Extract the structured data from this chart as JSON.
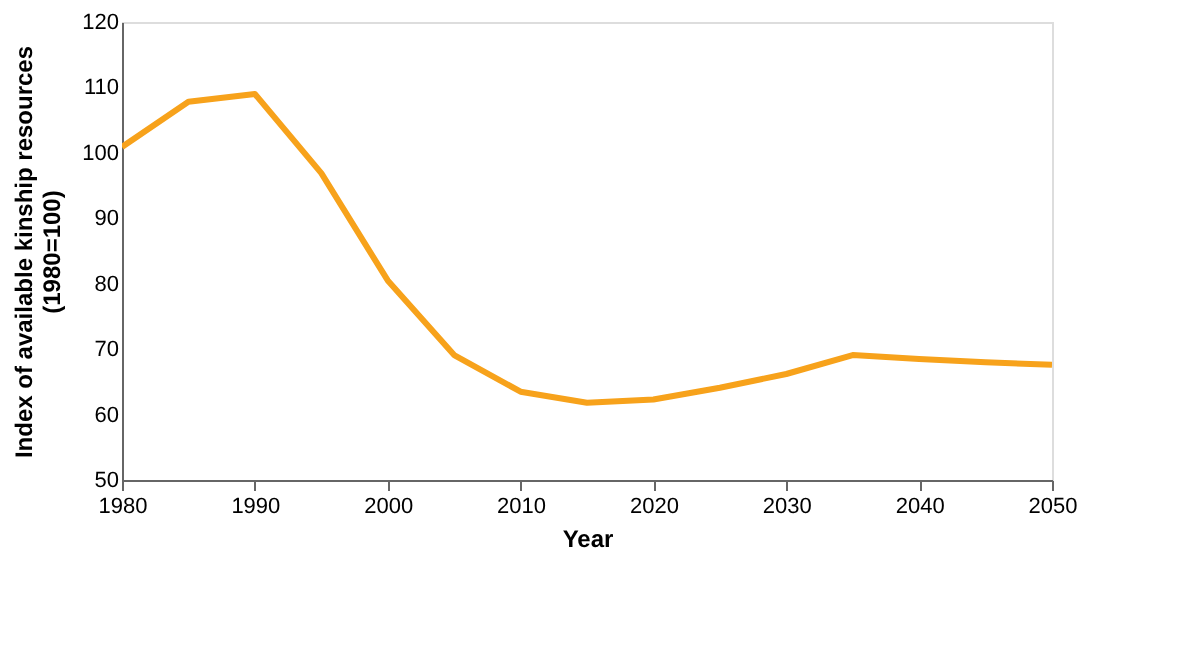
{
  "chart_data": {
    "type": "line",
    "xlabel": "Year",
    "ylabel": "Index of available kinship resources\n(1980=100)",
    "x": [
      1980,
      1985,
      1990,
      1995,
      2000,
      2005,
      2010,
      2015,
      2020,
      2025,
      2030,
      2035,
      2040,
      2045,
      2050
    ],
    "series": [
      {
        "color": "#f7a21b",
        "values": [
          100.9,
          107.8,
          109,
          96.9,
          80.5,
          69.1,
          63.5,
          61.8,
          62.3,
          64.1,
          66.2,
          69.1,
          68.5,
          68.0,
          67.6
        ]
      }
    ],
    "xlim": [
      1980,
      2050
    ],
    "xticks": [
      1980,
      1990,
      2000,
      2010,
      2020,
      2030,
      2040,
      2050
    ],
    "ylim": [
      50,
      120
    ],
    "yticks": [
      50,
      60,
      70,
      80,
      90,
      100,
      110,
      120
    ],
    "grid": false,
    "legend": false,
    "marker": "none",
    "line_style": "solid"
  }
}
